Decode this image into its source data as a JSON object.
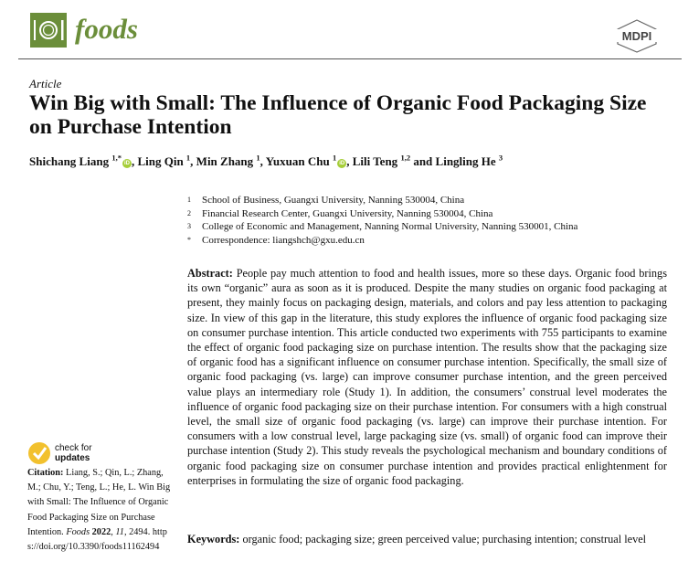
{
  "header": {
    "journal": "foods",
    "publisher_logo": "MDPI",
    "colors": {
      "journal_green": "#6b8e3a",
      "orcid_green": "#a6ce39",
      "check_yellow": "#f2c12e"
    }
  },
  "article": {
    "type": "Article",
    "title": "Win Big with Small: The Influence of Organic Food Packaging Size on Purchase Intention",
    "authors": [
      {
        "name": "Shichang Liang",
        "sup": "1,*",
        "orcid": true,
        "sep": ", "
      },
      {
        "name": "Ling Qin",
        "sup": "1",
        "orcid": false,
        "sep": ", "
      },
      {
        "name": "Min Zhang",
        "sup": "1",
        "orcid": false,
        "sep": ", "
      },
      {
        "name": "Yuxuan Chu",
        "sup": "1",
        "orcid": true,
        "sep": ", "
      },
      {
        "name": "Lili Teng",
        "sup": "1,2",
        "orcid": false,
        "sep": " and "
      },
      {
        "name": "Lingling He",
        "sup": "3",
        "orcid": false,
        "sep": ""
      }
    ],
    "affiliations": [
      {
        "n": "1",
        "text": "School of Business, Guangxi University, Nanning 530004, China"
      },
      {
        "n": "2",
        "text": "Financial Research Center, Guangxi University, Nanning 530004, China"
      },
      {
        "n": "3",
        "text": "College of Economic and Management, Nanning Normal University, Nanning 530001, China"
      },
      {
        "n": "*",
        "text": "Correspondence: liangshch@gxu.edu.cn"
      }
    ],
    "abstract_label": "Abstract:",
    "abstract": "People pay much attention to food and health issues, more so these days. Organic food brings its own “organic” aura as soon as it is produced. Despite the many studies on organic food packaging at present, they mainly focus on packaging design, materials, and colors and pay less attention to packaging size. In view of this gap in the literature, this study explores the influence of organic food packaging size on consumer purchase intention. This article conducted two experiments with 755 participants to examine the effect of organic food packaging size on purchase intention. The results show that the packaging size of organic food has a significant influence on consumer purchase intention. Specifically, the small size of organic food packaging (vs. large) can improve consumer purchase intention, and the green perceived value plays an intermediary role (Study 1). In addition, the consumers’ construal level moderates the influence of organic food packaging size on their purchase intention. For consumers with a high construal level, the small size of organic food packaging (vs. large) can improve their purchase intention. For consumers with a low construal level, large packaging size (vs. small) of organic food can improve their purchase intention (Study 2). This study reveals the psychological mechanism and boundary conditions of organic food packaging size on consumer purchase intention and provides practical enlightenment for enterprises in formulating the size of organic food packaging.",
    "keywords_label": "Keywords:",
    "keywords": "organic food; packaging size; green perceived value; purchasing intention; construal level"
  },
  "sidebar": {
    "check_line1": "check for",
    "check_line2": "updates",
    "citation_label": "Citation:",
    "citation_text": "Liang, S.; Qin, L.; Zhang, M.; Chu, Y.; Teng, L.; He, L. Win Big with Small: The Influence of Organic Food Packaging Size on Purchase Intention.",
    "citation_journal": "Foods",
    "citation_year": "2022",
    "citation_volume": "11",
    "citation_page": ", 2494.",
    "citation_doi": "https://doi.org/10.3390/foods11162494"
  }
}
